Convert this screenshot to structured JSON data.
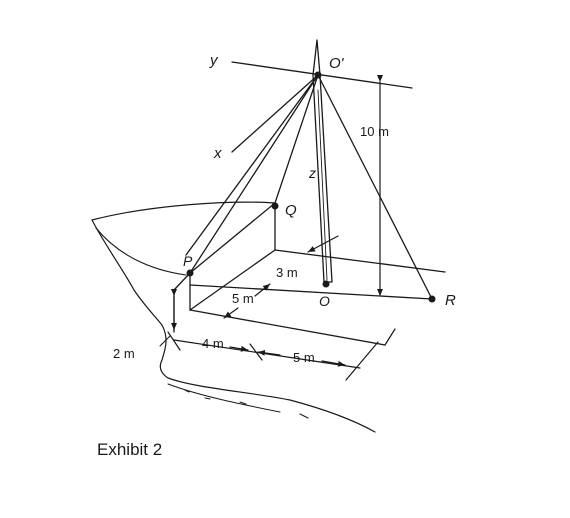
{
  "labels": {
    "y_axis": "y",
    "x_axis": "x",
    "z_axis": "z",
    "o_prime": "O'",
    "o": "O",
    "p": "P",
    "q": "Q",
    "r": "R",
    "dim_10m": "10 m",
    "dim_3m": "3 m",
    "dim_5m_depth": "5 m",
    "dim_4m": "4 m",
    "dim_5m_width": "5 m",
    "dim_2m": "2 m"
  },
  "caption": "Exhibit 2"
}
